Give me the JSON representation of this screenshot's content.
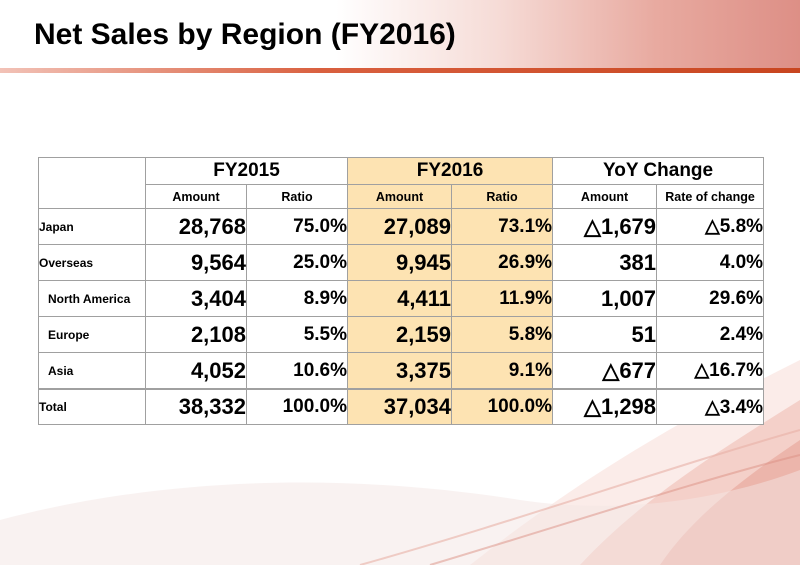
{
  "title": "Net Sales by Region (FY2016)",
  "table": {
    "groups": [
      "FY2015",
      "FY2016",
      "YoY Change"
    ],
    "subheaders": [
      "Amount",
      "Ratio",
      "Amount",
      "Ratio",
      "Amount",
      "Rate of change"
    ],
    "rows": [
      {
        "region": "Japan",
        "fy2015_amount": "28,768",
        "fy2015_ratio": "75.0%",
        "fy2016_amount": "27,089",
        "fy2016_ratio": "73.1%",
        "yoy_amount": "△1,679",
        "yoy_rate": "△5.8%"
      },
      {
        "region": "Overseas",
        "fy2015_amount": "9,564",
        "fy2015_ratio": "25.0%",
        "fy2016_amount": "9,945",
        "fy2016_ratio": "26.9%",
        "yoy_amount": "381",
        "yoy_rate": "4.0%"
      },
      {
        "region": "North America",
        "fy2015_amount": "3,404",
        "fy2015_ratio": "8.9%",
        "fy2016_amount": "4,411",
        "fy2016_ratio": "11.9%",
        "yoy_amount": "1,007",
        "yoy_rate": "29.6%"
      },
      {
        "region": "Europe",
        "fy2015_amount": "2,108",
        "fy2015_ratio": "5.5%",
        "fy2016_amount": "2,159",
        "fy2016_ratio": "5.8%",
        "yoy_amount": "51",
        "yoy_rate": "2.4%"
      },
      {
        "region": "Asia",
        "fy2015_amount": "4,052",
        "fy2015_ratio": "10.6%",
        "fy2016_amount": "3,375",
        "fy2016_ratio": "9.1%",
        "yoy_amount": "△677",
        "yoy_rate": "△16.7%"
      },
      {
        "region": "Total",
        "fy2015_amount": "38,332",
        "fy2015_ratio": "100.0%",
        "fy2016_amount": "37,034",
        "fy2016_ratio": "100.0%",
        "yoy_amount": "△1,298",
        "yoy_rate": "△3.4%"
      }
    ]
  },
  "colors": {
    "fy2016_highlight": "#fde3b2",
    "accent_red": "#c8451f",
    "border_gray": "#a0a0a0"
  }
}
